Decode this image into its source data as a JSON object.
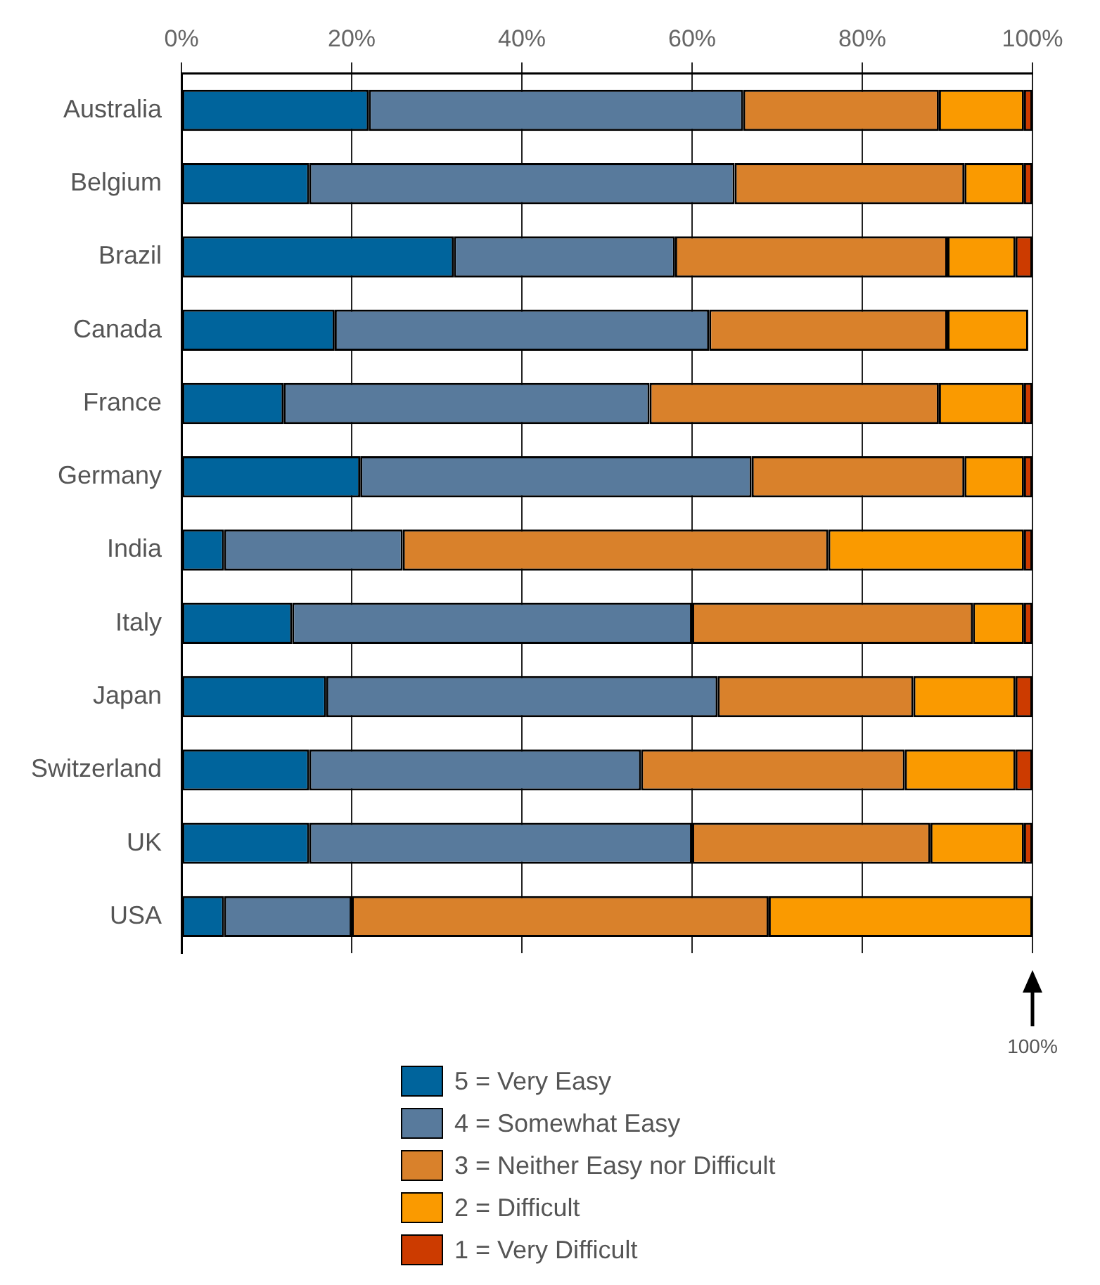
{
  "chart_data": {
    "type": "bar",
    "orientation": "horizontal",
    "stacked": true,
    "categories": [
      "Australia",
      "Belgium",
      "Brazil",
      "Canada",
      "France",
      "Germany",
      "India",
      "Italy",
      "Japan",
      "Switzerland",
      "UK",
      "USA"
    ],
    "series": [
      {
        "name": "5 = Very Easy",
        "color": "#00649c",
        "values": [
          22,
          15,
          32,
          18,
          12,
          21,
          5,
          13,
          17,
          15,
          15,
          5
        ]
      },
      {
        "name": "4 = Somewhat Easy",
        "color": "#587a9c",
        "values": [
          44,
          50,
          26,
          44,
          43,
          46,
          21,
          47,
          46,
          39,
          45,
          15
        ]
      },
      {
        "name": "3 = Neither Easy nor Difficult",
        "color": "#d9812b",
        "values": [
          23,
          27,
          32,
          28,
          34,
          25,
          50,
          33,
          23,
          31,
          28,
          49
        ]
      },
      {
        "name": "2 = Difficult",
        "color": "#fa9a00",
        "values": [
          10,
          7,
          8,
          9.5,
          10,
          7,
          23,
          6,
          12,
          13,
          11,
          31
        ]
      },
      {
        "name": "1 = Very Difficult",
        "color": "#cc3b00",
        "values": [
          1,
          1,
          2,
          null,
          1,
          1,
          1,
          1,
          2,
          2,
          1,
          0
        ]
      }
    ],
    "xlim": [
      0,
      100
    ],
    "xticks": [
      {
        "value": 0,
        "label": "0%"
      },
      {
        "value": 20,
        "label": "20%"
      },
      {
        "value": 40,
        "label": "40%"
      },
      {
        "value": 60,
        "label": "60%"
      },
      {
        "value": 80,
        "label": "80%"
      },
      {
        "value": 100,
        "label": "100%"
      }
    ],
    "grid": "x",
    "legend": "bottom",
    "annotations": [
      "100%"
    ]
  }
}
